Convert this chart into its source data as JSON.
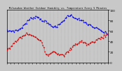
{
  "title": "Milwaukee Weather Outdoor Humidity vs. Temperature Every 5 Minutes",
  "bg_color": "#c8c8c8",
  "plot_bg": "#c8c8c8",
  "blue_color": "#0000ee",
  "red_color": "#cc0000",
  "border_color": "#000000",
  "grid_color": "#999999",
  "humidity_y": [
    60,
    60,
    60,
    60,
    60,
    60,
    60,
    60,
    60,
    61,
    61,
    62,
    63,
    65,
    66,
    68,
    70,
    72,
    74,
    76,
    78,
    80,
    82,
    83,
    84,
    85,
    86,
    87,
    87,
    87,
    86,
    85,
    84,
    83,
    81,
    80,
    79,
    78,
    77,
    76,
    74,
    73,
    72,
    71,
    70,
    69,
    68,
    67,
    67,
    68,
    70,
    72,
    74,
    76,
    78,
    80,
    82,
    84,
    86,
    88,
    89,
    90,
    90,
    89,
    88,
    87,
    86,
    85,
    84,
    83,
    82,
    81,
    80,
    79,
    78,
    77,
    76,
    75,
    74,
    73,
    72,
    71,
    70,
    69,
    68,
    67,
    66,
    65,
    64,
    63,
    62,
    61,
    60,
    59,
    58,
    57,
    56,
    55,
    54,
    53
  ],
  "temp_y": [
    25,
    26,
    27,
    28,
    30,
    32,
    34,
    36,
    38,
    40,
    42,
    44,
    46,
    47,
    48,
    50,
    51,
    52,
    53,
    54,
    55,
    54,
    53,
    52,
    51,
    50,
    49,
    48,
    47,
    46,
    45,
    44,
    43,
    42,
    40,
    35,
    28,
    22,
    18,
    15,
    14,
    15,
    17,
    19,
    21,
    22,
    21,
    20,
    19,
    18,
    17,
    16,
    15,
    14,
    13,
    12,
    13,
    15,
    17,
    19,
    21,
    23,
    25,
    27,
    29,
    31,
    33,
    35,
    36,
    37,
    38,
    39,
    40,
    40,
    39,
    38,
    37,
    36,
    35,
    34,
    35,
    36,
    37,
    38,
    39,
    40,
    41,
    42,
    43,
    44,
    45,
    46,
    47,
    48,
    49,
    50,
    51,
    52,
    53,
    54
  ],
  "n_points": 100,
  "ylim": [
    0,
    100
  ],
  "yticks": [
    0,
    20,
    40,
    60,
    80,
    100
  ],
  "n_grids": 28,
  "marker_size": 1.0,
  "line_width": 0.0,
  "dot_size": 1.5
}
